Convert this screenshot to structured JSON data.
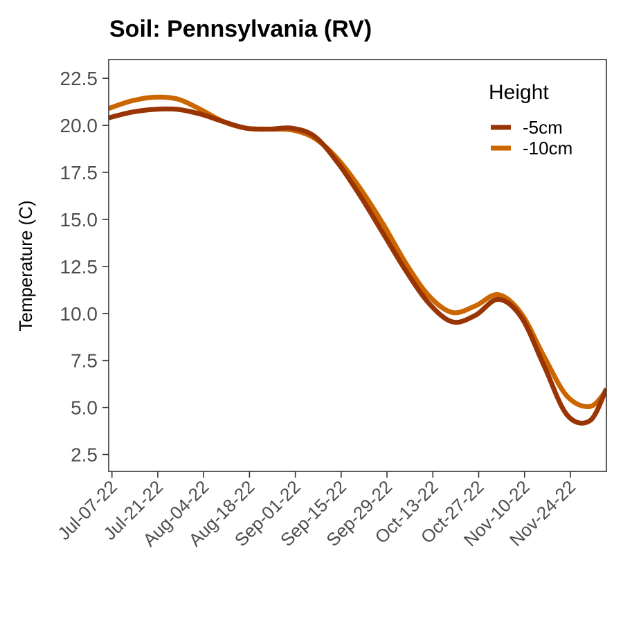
{
  "chart_data": {
    "type": "line",
    "title": "Soil: Pennsylvania (RV)",
    "xlabel": "",
    "ylabel": "Temperature (C)",
    "x_tick_labels": [
      "Jul-07-22",
      "Jul-21-22",
      "Aug-04-22",
      "Aug-18-22",
      "Sep-01-22",
      "Sep-15-22",
      "Sep-29-22",
      "Oct-13-22",
      "Oct-27-22",
      "Nov-10-22",
      "Nov-24-22"
    ],
    "xlim": [
      "2022-07-06",
      "2022-12-05"
    ],
    "ylim": [
      1.6,
      23.5
    ],
    "y_ticks": [
      2.5,
      5.0,
      7.5,
      10.0,
      12.5,
      15.0,
      17.5,
      20.0,
      22.5
    ],
    "y_tick_labels": [
      "2.5",
      "5.0",
      "7.5",
      "10.0",
      "12.5",
      "15.0",
      "17.5",
      "20.0",
      "22.5"
    ],
    "grid": false,
    "legend": {
      "title": "Height",
      "position": "top-right"
    },
    "series": [
      {
        "name": "-5cm",
        "color": "#993404",
        "x": [
          "2022-07-06",
          "2022-07-13",
          "2022-07-20",
          "2022-07-27",
          "2022-08-03",
          "2022-08-10",
          "2022-08-17",
          "2022-08-24",
          "2022-08-31",
          "2022-09-07",
          "2022-09-14",
          "2022-09-21",
          "2022-09-28",
          "2022-10-05",
          "2022-10-12",
          "2022-10-19",
          "2022-10-26",
          "2022-11-02",
          "2022-11-09",
          "2022-11-16",
          "2022-11-23",
          "2022-11-30",
          "2022-12-05"
        ],
        "y": [
          20.4,
          20.7,
          20.85,
          20.85,
          20.6,
          20.2,
          19.85,
          19.8,
          19.85,
          19.4,
          18.0,
          16.2,
          14.2,
          12.2,
          10.5,
          9.55,
          9.9,
          10.75,
          9.8,
          7.2,
          4.6,
          4.3,
          6.0
        ]
      },
      {
        "name": "-10cm",
        "color": "#cc6600",
        "x": [
          "2022-07-06",
          "2022-07-13",
          "2022-07-20",
          "2022-07-27",
          "2022-08-03",
          "2022-08-10",
          "2022-08-17",
          "2022-08-24",
          "2022-08-31",
          "2022-09-07",
          "2022-09-14",
          "2022-09-21",
          "2022-09-28",
          "2022-10-05",
          "2022-10-12",
          "2022-10-19",
          "2022-10-26",
          "2022-11-02",
          "2022-11-09",
          "2022-11-16",
          "2022-11-23",
          "2022-11-30",
          "2022-12-05"
        ],
        "y": [
          20.9,
          21.3,
          21.5,
          21.4,
          20.85,
          20.2,
          19.85,
          19.8,
          19.75,
          19.3,
          18.2,
          16.6,
          14.7,
          12.6,
          10.9,
          10.05,
          10.4,
          11.0,
          10.0,
          7.7,
          5.6,
          5.05,
          5.9
        ]
      }
    ]
  }
}
